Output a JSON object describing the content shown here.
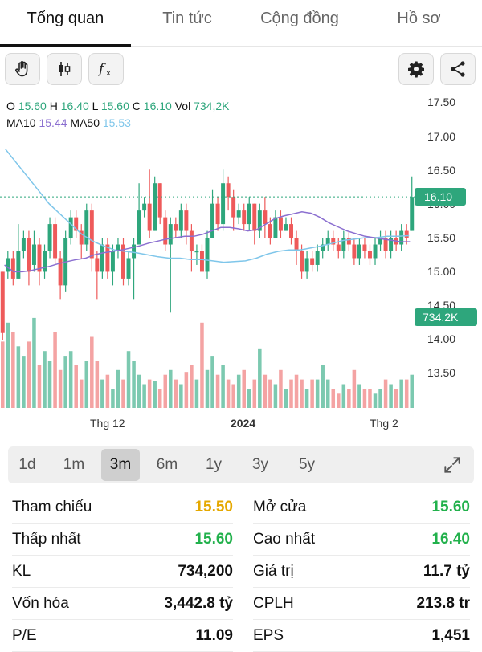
{
  "tabs": [
    "Tổng quan",
    "Tin tức",
    "Cộng đồng",
    "Hồ sơ"
  ],
  "active_tab": 0,
  "toolbar": {
    "icons": [
      "hand-icon",
      "candlestick-icon",
      "function-icon",
      "gear-icon",
      "share-icon"
    ]
  },
  "legend": {
    "o_label": "O",
    "o": "15.60",
    "h_label": "H",
    "h": "16.40",
    "l_label": "L",
    "l": "15.60",
    "c_label": "C",
    "c": "16.10",
    "vol_label": "Vol",
    "vol": "734,2K",
    "ma10_label": "MA10",
    "ma10": "15.44",
    "ma50_label": "MA50",
    "ma50": "15.53"
  },
  "y_axis": [
    "17.50",
    "17.00",
    "16.50",
    "16.00",
    "15.50",
    "15.00",
    "14.50",
    "14.00",
    "13.50"
  ],
  "price_tag": "16.10",
  "volume_tag": "734.2K",
  "x_axis": [
    "Thg 12",
    "2024",
    "Thg 2"
  ],
  "colors": {
    "up": "#2ea67c",
    "down": "#ee5a5a",
    "ma10": "#8b6fd0",
    "ma50": "#7fc6ea"
  },
  "chart_data": {
    "type": "candlestick",
    "ylim": [
      13.0,
      17.6
    ],
    "last_close": 16.1,
    "candles": [
      [
        15.0,
        14.1,
        15.0,
        14.0,
        0
      ],
      [
        15.0,
        15.2,
        15.3,
        14.9,
        0
      ],
      [
        15.2,
        14.9,
        15.3,
        14.8,
        0
      ],
      [
        14.9,
        15.3,
        15.7,
        14.9,
        0
      ],
      [
        15.3,
        15.5,
        15.6,
        15.2,
        0
      ],
      [
        15.5,
        15.0,
        15.6,
        14.8,
        0
      ],
      [
        15.1,
        15.4,
        15.6,
        15.0,
        0
      ],
      [
        15.4,
        15.0,
        15.5,
        14.8,
        0
      ],
      [
        15.0,
        15.3,
        15.4,
        14.9,
        0
      ],
      [
        15.3,
        15.7,
        15.8,
        15.2,
        0
      ],
      [
        15.7,
        15.2,
        15.8,
        15.1,
        0
      ],
      [
        15.2,
        14.8,
        15.3,
        14.6,
        0
      ],
      [
        14.8,
        15.5,
        15.6,
        14.7,
        0
      ],
      [
        15.5,
        15.8,
        15.9,
        15.4,
        0
      ],
      [
        15.8,
        15.6,
        15.9,
        15.5,
        0
      ],
      [
        15.6,
        15.4,
        15.7,
        15.2,
        0
      ],
      [
        15.4,
        15.9,
        16.0,
        15.3,
        0
      ],
      [
        15.9,
        15.2,
        16.0,
        15.0,
        0
      ],
      [
        15.2,
        15.0,
        15.3,
        14.6,
        0
      ],
      [
        15.0,
        15.4,
        15.5,
        14.9,
        0
      ],
      [
        15.4,
        15.0,
        15.5,
        14.9,
        0
      ],
      [
        15.0,
        15.3,
        15.4,
        14.8,
        0
      ],
      [
        15.3,
        15.4,
        15.5,
        15.2,
        0
      ],
      [
        15.4,
        14.9,
        15.5,
        14.8,
        0
      ],
      [
        14.9,
        15.2,
        15.3,
        14.8,
        0
      ],
      [
        15.2,
        15.4,
        15.5,
        14.6,
        0
      ],
      [
        15.4,
        15.9,
        16.3,
        15.4,
        0
      ],
      [
        15.9,
        16.0,
        16.1,
        15.8,
        0
      ],
      [
        16.0,
        15.6,
        16.5,
        15.5,
        0
      ],
      [
        15.6,
        16.3,
        16.4,
        15.6,
        0
      ],
      [
        16.3,
        15.8,
        16.3,
        15.7,
        0
      ],
      [
        15.8,
        15.4,
        15.9,
        15.3,
        0
      ],
      [
        15.4,
        15.7,
        15.8,
        14.4,
        0
      ],
      [
        15.7,
        15.6,
        15.8,
        15.5,
        0
      ],
      [
        15.6,
        15.9,
        16.0,
        15.5,
        0
      ],
      [
        15.9,
        15.6,
        16.0,
        15.4,
        0
      ],
      [
        15.6,
        15.3,
        15.7,
        15.0,
        0
      ],
      [
        15.3,
        15.3,
        15.4,
        15.1,
        0
      ],
      [
        15.3,
        15.0,
        15.4,
        15.0,
        0
      ],
      [
        15.0,
        15.5,
        15.6,
        14.9,
        0
      ],
      [
        15.5,
        16.0,
        16.2,
        15.5,
        0
      ],
      [
        16.0,
        15.7,
        16.1,
        15.6,
        0
      ],
      [
        15.7,
        16.3,
        16.5,
        15.6,
        0
      ],
      [
        16.3,
        16.1,
        16.4,
        15.9,
        0
      ],
      [
        16.1,
        15.8,
        16.2,
        15.6,
        0
      ],
      [
        15.8,
        15.9,
        16.0,
        15.7,
        0
      ],
      [
        15.9,
        15.7,
        16.0,
        15.6,
        0
      ],
      [
        15.7,
        16.0,
        16.1,
        15.6,
        0
      ],
      [
        16.0,
        15.6,
        16.0,
        15.4,
        0
      ],
      [
        15.6,
        15.9,
        16.0,
        15.5,
        0
      ],
      [
        15.9,
        15.7,
        16.1,
        15.5,
        0
      ],
      [
        15.7,
        15.5,
        15.8,
        15.4,
        0
      ],
      [
        15.5,
        15.8,
        15.9,
        15.5,
        0
      ],
      [
        15.8,
        15.6,
        15.9,
        15.5,
        0
      ],
      [
        15.6,
        15.7,
        15.8,
        15.6,
        0
      ],
      [
        15.7,
        15.5,
        15.8,
        15.4,
        0
      ],
      [
        15.5,
        15.3,
        15.6,
        15.1,
        0
      ],
      [
        15.3,
        15.0,
        15.4,
        14.9,
        0
      ],
      [
        15.0,
        15.2,
        15.3,
        14.9,
        0
      ],
      [
        15.2,
        15.1,
        15.3,
        15.0,
        0
      ],
      [
        15.1,
        15.3,
        15.4,
        15.0,
        0
      ],
      [
        15.3,
        15.4,
        15.5,
        15.2,
        0
      ],
      [
        15.4,
        15.5,
        15.6,
        15.3,
        0
      ],
      [
        15.5,
        15.4,
        15.6,
        15.3,
        0
      ],
      [
        15.4,
        15.3,
        15.5,
        15.2,
        0
      ],
      [
        15.3,
        15.5,
        15.6,
        15.2,
        0
      ],
      [
        15.5,
        15.4,
        15.6,
        15.3,
        0
      ],
      [
        15.4,
        15.2,
        15.5,
        15.1,
        0
      ],
      [
        15.2,
        15.4,
        15.5,
        15.1,
        0
      ],
      [
        15.4,
        15.3,
        15.5,
        15.2,
        0
      ],
      [
        15.3,
        15.2,
        15.4,
        15.1,
        0
      ],
      [
        15.2,
        15.4,
        15.5,
        15.1,
        0
      ],
      [
        15.4,
        15.5,
        15.6,
        15.3,
        0
      ],
      [
        15.5,
        15.3,
        15.6,
        15.2,
        0
      ],
      [
        15.3,
        15.5,
        15.6,
        15.2,
        0
      ],
      [
        15.5,
        15.4,
        15.6,
        15.3,
        0
      ],
      [
        15.4,
        15.6,
        15.7,
        15.3,
        0
      ],
      [
        15.6,
        15.5,
        15.7,
        15.4,
        0
      ],
      [
        15.6,
        16.1,
        16.4,
        15.6,
        0
      ]
    ],
    "volume_rel": [
      0.7,
      0.9,
      0.8,
      0.65,
      0.55,
      0.7,
      0.95,
      0.45,
      0.6,
      0.5,
      0.8,
      0.4,
      0.55,
      0.6,
      0.45,
      0.3,
      0.5,
      0.75,
      0.5,
      0.3,
      0.35,
      0.2,
      0.4,
      0.3,
      0.6,
      0.5,
      0.35,
      0.25,
      0.3,
      0.28,
      0.2,
      0.35,
      0.4,
      0.3,
      0.25,
      0.38,
      0.45,
      0.3,
      0.9,
      0.4,
      0.55,
      0.35,
      0.45,
      0.3,
      0.25,
      0.35,
      0.4,
      0.2,
      0.3,
      0.62,
      0.35,
      0.3,
      0.25,
      0.4,
      0.2,
      0.3,
      0.35,
      0.3,
      0.2,
      0.3,
      0.3,
      0.45,
      0.3,
      0.2,
      0.15,
      0.25,
      0.2,
      0.4,
      0.25,
      0.2,
      0.2,
      0.15,
      0.2,
      0.3,
      0.25,
      0.2,
      0.3,
      0.3,
      0.35,
      1.0
    ],
    "ma10": [
      15.1,
      15.0,
      15.0,
      15.02,
      15.05,
      15.08,
      15.12,
      15.15,
      15.18,
      15.2,
      15.25,
      15.28,
      15.3,
      15.32,
      15.35,
      15.38,
      15.42,
      15.45,
      15.48,
      15.5,
      15.52,
      15.52,
      15.55,
      15.6,
      15.65,
      15.65,
      15.63,
      15.6,
      15.62,
      15.7,
      15.78,
      15.82,
      15.85,
      15.88,
      15.86,
      15.8,
      15.72,
      15.66,
      15.6,
      15.56,
      15.52,
      15.5,
      15.48,
      15.46,
      15.44,
      15.44
    ],
    "ma50": [
      16.8,
      16.6,
      16.4,
      16.2,
      16.0,
      15.85,
      15.7,
      15.55,
      15.45,
      15.38,
      15.32,
      15.3,
      15.28,
      15.25,
      15.22,
      15.2,
      15.2,
      15.18,
      15.18,
      15.16,
      15.14,
      15.15,
      15.16,
      15.2,
      15.26,
      15.3,
      15.32,
      15.32,
      15.35,
      15.38,
      15.42,
      15.46,
      15.48,
      15.5,
      15.5,
      15.52,
      15.52,
      15.53
    ]
  },
  "ranges": {
    "items": [
      "1d",
      "1m",
      "3m",
      "6m",
      "1y",
      "3y",
      "5y"
    ],
    "active": 2
  },
  "stats": {
    "left": [
      {
        "label": "Tham chiếu",
        "value": "15.50",
        "color": "yellow"
      },
      {
        "label": "Thấp nhất",
        "value": "15.60",
        "color": "green"
      },
      {
        "label": "KL",
        "value": "734,200",
        "color": ""
      },
      {
        "label": "Vốn hóa",
        "value": "3,442.8 tỷ",
        "color": ""
      },
      {
        "label": "P/E",
        "value": "11.09",
        "color": ""
      }
    ],
    "right": [
      {
        "label": "Mở cửa",
        "value": "15.60",
        "color": "green"
      },
      {
        "label": "Cao nhất",
        "value": "16.40",
        "color": "green"
      },
      {
        "label": "Giá trị",
        "value": "11.7 tỷ",
        "color": ""
      },
      {
        "label": "CPLH",
        "value": "213.8 tr",
        "color": ""
      },
      {
        "label": "EPS",
        "value": "1,451",
        "color": ""
      }
    ]
  }
}
